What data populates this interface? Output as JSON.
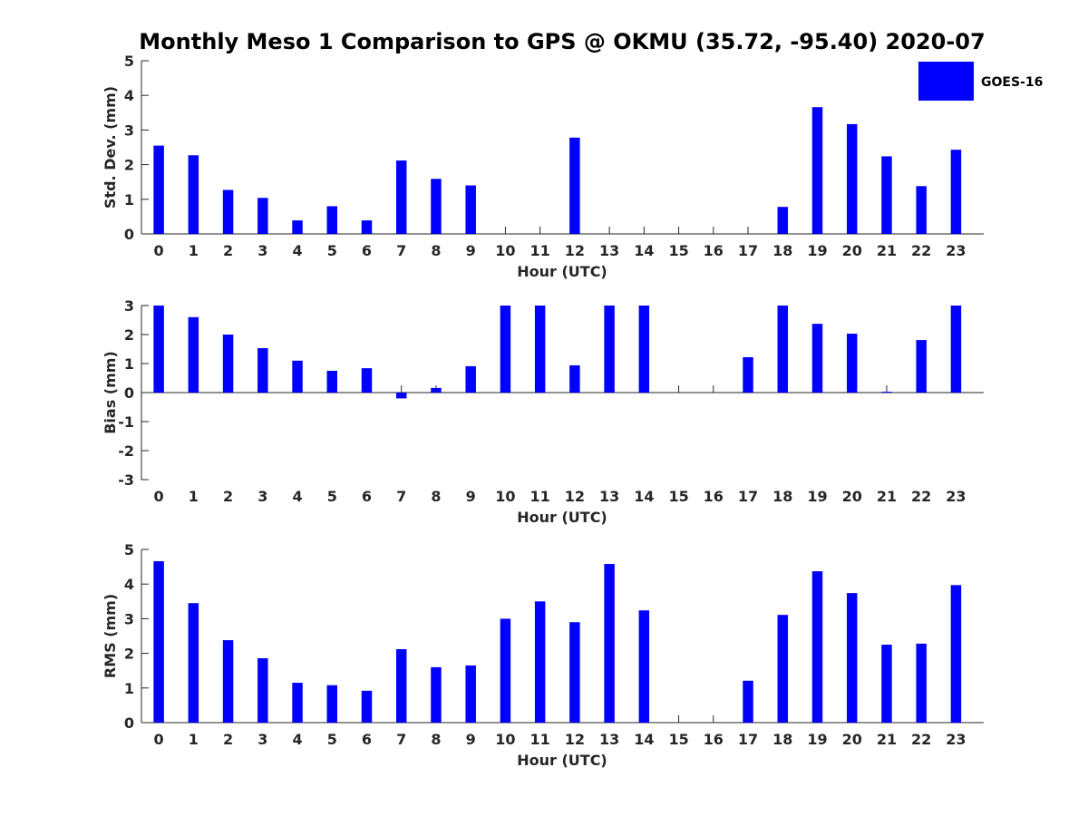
{
  "title": "Monthly Meso 1 Comparison to GPS @ OKMU (35.72, -95.40) 2020-07",
  "legend": {
    "label": "GOES-16",
    "position": "top-right",
    "color": "#0000ff"
  },
  "chart_data": [
    {
      "type": "bar",
      "xlabel": "Hour (UTC)",
      "ylabel": "Std. Dev. (mm)",
      "ylim": [
        0,
        5
      ],
      "yticks": [
        "0",
        "1",
        "2",
        "3",
        "4",
        "5"
      ],
      "categories": [
        "0",
        "1",
        "2",
        "3",
        "4",
        "5",
        "6",
        "7",
        "8",
        "9",
        "10",
        "11",
        "12",
        "13",
        "14",
        "15",
        "16",
        "17",
        "18",
        "19",
        "20",
        "21",
        "22",
        "23"
      ],
      "series": [
        {
          "name": "GOES-16",
          "color": "#0000ff",
          "values": [
            2.55,
            2.27,
            1.27,
            1.04,
            0.39,
            0.8,
            0.39,
            2.12,
            1.59,
            1.4,
            0,
            0,
            2.78,
            0,
            0,
            0,
            0,
            0,
            0.78,
            3.66,
            3.17,
            2.24,
            1.38,
            2.43
          ]
        }
      ],
      "grid": false
    },
    {
      "type": "bar",
      "xlabel": "Hour (UTC)",
      "ylabel": "Bias (mm)",
      "ylim": [
        -3,
        3
      ],
      "yticks": [
        "-3",
        "-2",
        "-1",
        "0",
        "1",
        "2",
        "3"
      ],
      "categories": [
        "0",
        "1",
        "2",
        "3",
        "4",
        "5",
        "6",
        "7",
        "8",
        "9",
        "10",
        "11",
        "12",
        "13",
        "14",
        "15",
        "16",
        "17",
        "18",
        "19",
        "20",
        "21",
        "22",
        "23"
      ],
      "series": [
        {
          "name": "GOES-16",
          "color": "#0000ff",
          "values": [
            3.0,
            2.6,
            2.0,
            1.53,
            1.1,
            0.75,
            0.84,
            -0.2,
            0.16,
            0.91,
            3.0,
            3.0,
            0.94,
            3.0,
            3.0,
            0,
            0,
            1.22,
            3.0,
            2.37,
            2.03,
            0.03,
            1.81,
            3.0
          ]
        }
      ],
      "grid": false
    },
    {
      "type": "bar",
      "xlabel": "Hour (UTC)",
      "ylabel": "RMS (mm)",
      "ylim": [
        0,
        5
      ],
      "yticks": [
        "0",
        "1",
        "2",
        "3",
        "4",
        "5"
      ],
      "categories": [
        "0",
        "1",
        "2",
        "3",
        "4",
        "5",
        "6",
        "7",
        "8",
        "9",
        "10",
        "11",
        "12",
        "13",
        "14",
        "15",
        "16",
        "17",
        "18",
        "19",
        "20",
        "21",
        "22",
        "23"
      ],
      "series": [
        {
          "name": "GOES-16",
          "color": "#0000ff",
          "values": [
            4.66,
            3.45,
            2.38,
            1.86,
            1.15,
            1.08,
            0.92,
            2.12,
            1.6,
            1.65,
            3.0,
            3.5,
            2.9,
            4.58,
            3.24,
            0,
            0,
            1.21,
            3.11,
            4.37,
            3.74,
            2.25,
            2.28,
            3.97
          ]
        }
      ],
      "grid": false
    }
  ]
}
